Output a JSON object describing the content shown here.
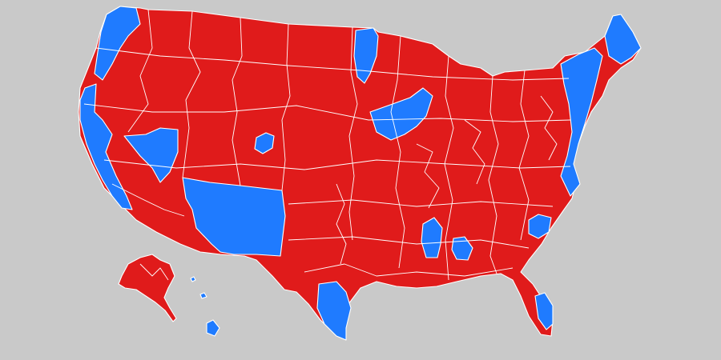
{
  "map": {
    "background_color": "#c9c9c9",
    "party_colors": {
      "red": "#e01b1b",
      "blue": "#1f7bff"
    },
    "regions": [
      {
        "id": "contiguous-us",
        "party": "red"
      },
      {
        "id": "alaska",
        "party": "red"
      },
      {
        "id": "hawaii",
        "party": "blue"
      }
    ],
    "blue_areas": [
      {
        "id": "pacific-coast"
      },
      {
        "id": "puget-sound"
      },
      {
        "id": "las-vegas"
      },
      {
        "id": "arizona-new-mexico"
      },
      {
        "id": "denver"
      },
      {
        "id": "minnesota"
      },
      {
        "id": "chicago-milwaukee"
      },
      {
        "id": "northeast-corridor"
      },
      {
        "id": "maine"
      },
      {
        "id": "south-texas"
      },
      {
        "id": "mississippi-delta"
      },
      {
        "id": "atlanta"
      },
      {
        "id": "south-florida"
      },
      {
        "id": "north-carolina"
      }
    ]
  }
}
